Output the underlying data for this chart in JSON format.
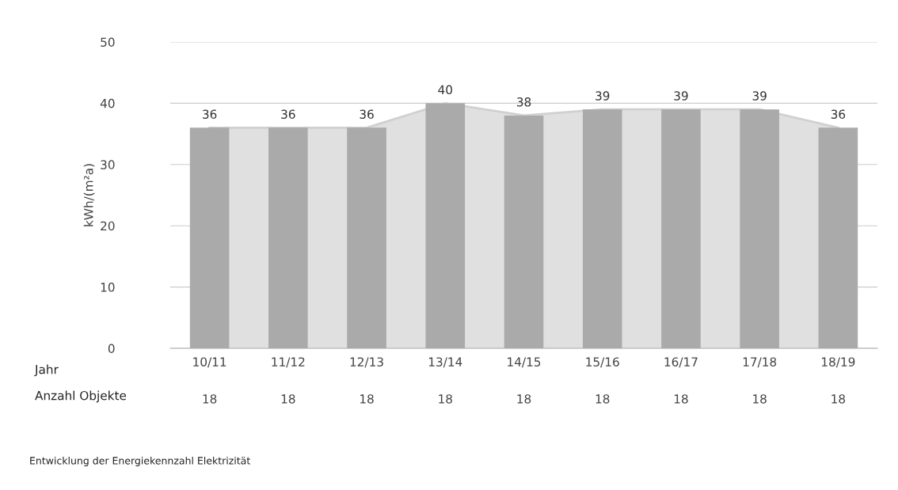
{
  "chart_data": {
    "type": "bar",
    "ylabel": "kWh/(m²a)",
    "categories": [
      "10/11",
      "11/12",
      "12/13",
      "13/14",
      "14/15",
      "15/16",
      "16/17",
      "17/18",
      "18/19"
    ],
    "series": [
      {
        "type": "area",
        "color": "#e0e0e0",
        "values": [
          36,
          36,
          36,
          40,
          38,
          39,
          39,
          39,
          36
        ]
      },
      {
        "color": "#aaaaaa",
        "values": [
          36,
          36,
          36,
          40,
          38,
          39,
          39,
          39,
          36
        ],
        "value_labels": [
          "36",
          "36",
          "36",
          "40",
          "38",
          "39",
          "39",
          "39",
          "36"
        ]
      }
    ],
    "ylim": [
      0,
      50
    ],
    "yticks": [
      0,
      10,
      20,
      30,
      40,
      50
    ],
    "grid": "y",
    "annotations": [
      "Jahr",
      "Anzahl Objekte",
      "18",
      "18",
      "18",
      "18",
      "18",
      "18",
      "18",
      "18",
      "18",
      "Entwicklung der Energiekennzahl Elektrizität"
    ]
  }
}
